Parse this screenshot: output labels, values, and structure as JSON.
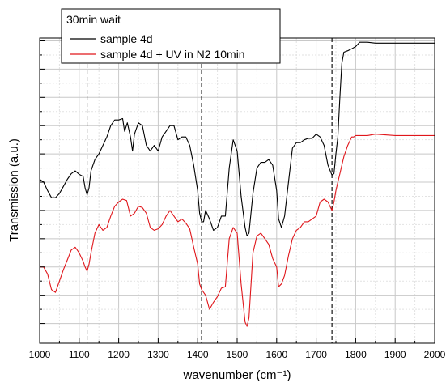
{
  "chart_data": {
    "type": "line",
    "title": "",
    "xlabel": "wavenumber (cm⁻¹)",
    "ylabel": "Transmission (a.u.)",
    "xlim": [
      1000,
      2000
    ],
    "x_ticks": [
      "1000",
      "1100",
      "1200",
      "1300",
      "1400",
      "1500",
      "1600",
      "1700",
      "1800",
      "1900",
      "2000"
    ],
    "y_tick_labels": "none",
    "grid": true,
    "legend": {
      "title": "30min wait",
      "position": "top-left",
      "entries": [
        {
          "name": "sample 4d",
          "color": "#000000"
        },
        {
          "name": "sample 4d + UV in N2 10min",
          "color": "#e0161b"
        }
      ]
    },
    "reference_lines_dashed": [
      1120,
      1410,
      1740
    ],
    "series": [
      {
        "name": "sample 4d",
        "color": "#000000",
        "points": [
          [
            1000,
            5.1
          ],
          [
            1010,
            5.0
          ],
          [
            1020,
            4.7
          ],
          [
            1030,
            4.45
          ],
          [
            1040,
            4.45
          ],
          [
            1050,
            4.6
          ],
          [
            1060,
            4.85
          ],
          [
            1070,
            5.1
          ],
          [
            1080,
            5.3
          ],
          [
            1090,
            5.4
          ],
          [
            1100,
            5.28
          ],
          [
            1110,
            5.2
          ],
          [
            1115,
            4.8
          ],
          [
            1120,
            4.55
          ],
          [
            1125,
            4.8
          ],
          [
            1130,
            5.4
          ],
          [
            1140,
            5.8
          ],
          [
            1150,
            6.0
          ],
          [
            1160,
            6.3
          ],
          [
            1170,
            6.6
          ],
          [
            1180,
            7.0
          ],
          [
            1190,
            7.2
          ],
          [
            1200,
            7.2
          ],
          [
            1210,
            7.25
          ],
          [
            1215,
            6.8
          ],
          [
            1222,
            7.1
          ],
          [
            1230,
            6.6
          ],
          [
            1235,
            6.1
          ],
          [
            1240,
            6.7
          ],
          [
            1250,
            7.1
          ],
          [
            1260,
            7.0
          ],
          [
            1270,
            6.3
          ],
          [
            1280,
            6.1
          ],
          [
            1290,
            6.3
          ],
          [
            1300,
            6.1
          ],
          [
            1310,
            6.6
          ],
          [
            1320,
            6.8
          ],
          [
            1330,
            7.0
          ],
          [
            1340,
            7.0
          ],
          [
            1350,
            6.5
          ],
          [
            1360,
            6.6
          ],
          [
            1370,
            6.6
          ],
          [
            1380,
            6.3
          ],
          [
            1390,
            5.6
          ],
          [
            1400,
            4.7
          ],
          [
            1405,
            3.9
          ],
          [
            1410,
            3.6
          ],
          [
            1415,
            3.6
          ],
          [
            1420,
            4.0
          ],
          [
            1430,
            3.7
          ],
          [
            1440,
            3.3
          ],
          [
            1450,
            3.4
          ],
          [
            1460,
            3.8
          ],
          [
            1470,
            3.8
          ],
          [
            1480,
            5.5
          ],
          [
            1490,
            6.5
          ],
          [
            1500,
            6.1
          ],
          [
            1510,
            4.5
          ],
          [
            1520,
            3.4
          ],
          [
            1525,
            3.1
          ],
          [
            1530,
            3.2
          ],
          [
            1540,
            4.6
          ],
          [
            1550,
            5.5
          ],
          [
            1560,
            5.7
          ],
          [
            1570,
            5.7
          ],
          [
            1580,
            5.8
          ],
          [
            1590,
            5.6
          ],
          [
            1600,
            4.7
          ],
          [
            1605,
            3.7
          ],
          [
            1612,
            3.4
          ],
          [
            1620,
            3.8
          ],
          [
            1630,
            5.0
          ],
          [
            1640,
            6.2
          ],
          [
            1650,
            6.4
          ],
          [
            1660,
            6.4
          ],
          [
            1670,
            6.5
          ],
          [
            1680,
            6.55
          ],
          [
            1690,
            6.55
          ],
          [
            1700,
            6.7
          ],
          [
            1710,
            6.6
          ],
          [
            1720,
            6.3
          ],
          [
            1730,
            5.6
          ],
          [
            1740,
            5.25
          ],
          [
            1745,
            5.3
          ],
          [
            1750,
            6.0
          ],
          [
            1755,
            6.6
          ],
          [
            1760,
            8.0
          ],
          [
            1765,
            9.2
          ],
          [
            1770,
            9.6
          ],
          [
            1780,
            9.65
          ],
          [
            1790,
            9.72
          ],
          [
            1800,
            9.8
          ],
          [
            1810,
            9.95
          ],
          [
            1830,
            9.95
          ],
          [
            1850,
            9.92
          ],
          [
            1900,
            9.92
          ],
          [
            1950,
            9.92
          ],
          [
            2000,
            9.92
          ]
        ]
      },
      {
        "name": "sample 4d + UV in N2 10min",
        "color": "#e0161b",
        "points": [
          [
            1000,
            2.0
          ],
          [
            1010,
            2.0
          ],
          [
            1020,
            1.75
          ],
          [
            1030,
            1.2
          ],
          [
            1040,
            1.1
          ],
          [
            1050,
            1.5
          ],
          [
            1060,
            1.9
          ],
          [
            1070,
            2.25
          ],
          [
            1080,
            2.6
          ],
          [
            1090,
            2.7
          ],
          [
            1100,
            2.5
          ],
          [
            1110,
            2.2
          ],
          [
            1115,
            2.0
          ],
          [
            1120,
            1.85
          ],
          [
            1125,
            2.1
          ],
          [
            1130,
            2.5
          ],
          [
            1140,
            3.2
          ],
          [
            1150,
            3.5
          ],
          [
            1160,
            3.3
          ],
          [
            1170,
            3.4
          ],
          [
            1180,
            3.8
          ],
          [
            1190,
            4.15
          ],
          [
            1200,
            4.3
          ],
          [
            1210,
            4.4
          ],
          [
            1220,
            4.35
          ],
          [
            1230,
            3.8
          ],
          [
            1240,
            3.9
          ],
          [
            1250,
            4.15
          ],
          [
            1260,
            4.1
          ],
          [
            1270,
            3.9
          ],
          [
            1280,
            3.4
          ],
          [
            1290,
            3.3
          ],
          [
            1300,
            3.35
          ],
          [
            1310,
            3.5
          ],
          [
            1320,
            3.8
          ],
          [
            1330,
            4.0
          ],
          [
            1340,
            3.8
          ],
          [
            1350,
            3.6
          ],
          [
            1360,
            3.7
          ],
          [
            1370,
            3.55
          ],
          [
            1380,
            3.35
          ],
          [
            1390,
            2.7
          ],
          [
            1400,
            2.1
          ],
          [
            1405,
            1.4
          ],
          [
            1410,
            1.2
          ],
          [
            1420,
            1.0
          ],
          [
            1430,
            0.5
          ],
          [
            1440,
            0.75
          ],
          [
            1450,
            0.95
          ],
          [
            1460,
            1.25
          ],
          [
            1470,
            1.3
          ],
          [
            1480,
            3.0
          ],
          [
            1490,
            3.4
          ],
          [
            1500,
            3.2
          ],
          [
            1510,
            1.4
          ],
          [
            1520,
            0.05
          ],
          [
            1525,
            -0.1
          ],
          [
            1530,
            0.2
          ],
          [
            1540,
            2.5
          ],
          [
            1550,
            3.1
          ],
          [
            1560,
            3.2
          ],
          [
            1570,
            3.0
          ],
          [
            1580,
            2.8
          ],
          [
            1590,
            2.3
          ],
          [
            1600,
            2.0
          ],
          [
            1605,
            1.3
          ],
          [
            1612,
            1.4
          ],
          [
            1620,
            1.7
          ],
          [
            1630,
            2.4
          ],
          [
            1640,
            3.0
          ],
          [
            1650,
            3.3
          ],
          [
            1660,
            3.4
          ],
          [
            1670,
            3.6
          ],
          [
            1680,
            3.6
          ],
          [
            1690,
            3.7
          ],
          [
            1700,
            3.8
          ],
          [
            1710,
            4.3
          ],
          [
            1720,
            4.4
          ],
          [
            1730,
            4.3
          ],
          [
            1740,
            4.0
          ],
          [
            1745,
            4.3
          ],
          [
            1750,
            4.7
          ],
          [
            1755,
            5.0
          ],
          [
            1760,
            5.3
          ],
          [
            1765,
            5.6
          ],
          [
            1770,
            5.9
          ],
          [
            1780,
            6.3
          ],
          [
            1790,
            6.6
          ],
          [
            1795,
            6.6
          ],
          [
            1800,
            6.65
          ],
          [
            1830,
            6.65
          ],
          [
            1850,
            6.7
          ],
          [
            1900,
            6.65
          ],
          [
            1950,
            6.65
          ],
          [
            2000,
            6.65
          ]
        ]
      }
    ]
  }
}
